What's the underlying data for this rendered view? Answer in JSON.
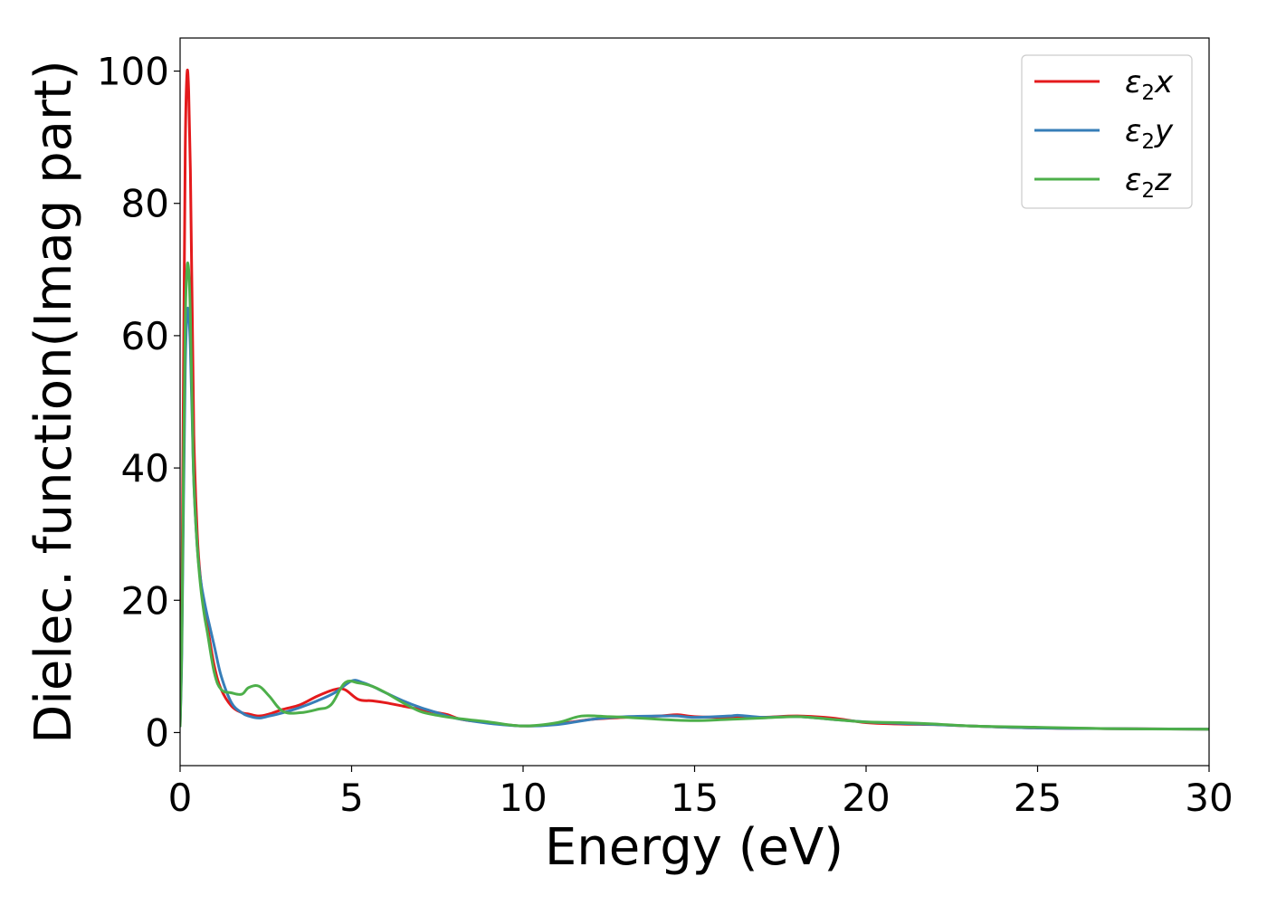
{
  "chart_data": {
    "type": "line",
    "title": "",
    "xlabel": "Energy (eV)",
    "ylabel": "Dielec. function(Imag part)",
    "xlim": [
      0,
      30
    ],
    "ylim": [
      -5,
      105
    ],
    "xticks": [
      0,
      5,
      10,
      15,
      20,
      25,
      30
    ],
    "yticks": [
      0,
      20,
      40,
      60,
      80,
      100
    ],
    "grid": false,
    "legend_position": "top-right",
    "series": [
      {
        "name": "ε2x",
        "legend": {
          "base": "ε",
          "sub": "2",
          "suffix": "x"
        },
        "color": "#e41a1c",
        "x": [
          0.0,
          0.05,
          0.1,
          0.15,
          0.2,
          0.25,
          0.3,
          0.35,
          0.4,
          0.5,
          0.6,
          0.7,
          0.8,
          1.0,
          1.2,
          1.5,
          1.8,
          2.0,
          2.3,
          2.6,
          3.0,
          3.5,
          4.0,
          4.5,
          4.8,
          5.2,
          5.6,
          6.0,
          6.5,
          7.0,
          7.5,
          7.8,
          8.2,
          9.0,
          10.0,
          11.0,
          12.0,
          13.0,
          14.0,
          14.5,
          15.0,
          16.0,
          17.0,
          18.0,
          19.0,
          20.0,
          21.0,
          22.0,
          23.0,
          25.0,
          27.0,
          30.0
        ],
        "y": [
          1.0,
          18.0,
          55.0,
          88.0,
          99.5,
          97.0,
          85.0,
          65.0,
          45.0,
          30.0,
          23.0,
          19.0,
          16.0,
          10.0,
          6.5,
          4.0,
          3.0,
          2.8,
          2.5,
          2.8,
          3.5,
          4.2,
          5.5,
          6.5,
          6.5,
          5.0,
          4.8,
          4.5,
          4.0,
          3.5,
          3.0,
          2.7,
          2.0,
          1.5,
          1.0,
          1.3,
          2.0,
          2.3,
          2.5,
          2.7,
          2.4,
          2.3,
          2.3,
          2.5,
          2.2,
          1.5,
          1.3,
          1.2,
          1.0,
          0.7,
          0.6,
          0.5
        ]
      },
      {
        "name": "ε2y",
        "legend": {
          "base": "ε",
          "sub": "2",
          "suffix": "y"
        },
        "color": "#377eb8",
        "x": [
          0.0,
          0.05,
          0.1,
          0.15,
          0.2,
          0.25,
          0.3,
          0.35,
          0.4,
          0.5,
          0.6,
          0.7,
          0.8,
          1.0,
          1.2,
          1.5,
          1.8,
          2.0,
          2.3,
          2.6,
          3.0,
          3.5,
          4.0,
          4.5,
          5.0,
          5.3,
          5.6,
          6.0,
          6.5,
          7.0,
          7.5,
          8.0,
          9.0,
          10.0,
          11.0,
          12.0,
          13.0,
          14.0,
          14.5,
          15.0,
          16.0,
          16.3,
          17.0,
          18.0,
          19.0,
          20.0,
          21.0,
          22.0,
          23.0,
          25.0,
          27.0,
          30.0
        ],
        "y": [
          1.0,
          12.0,
          35.0,
          55.0,
          63.0,
          63.5,
          58.0,
          48.0,
          38.0,
          28.0,
          23.0,
          20.0,
          17.5,
          13.0,
          8.5,
          4.5,
          3.0,
          2.5,
          2.2,
          2.5,
          3.0,
          3.8,
          4.8,
          6.0,
          7.8,
          7.6,
          7.0,
          6.0,
          4.8,
          3.8,
          3.0,
          2.2,
          1.4,
          1.0,
          1.2,
          2.0,
          2.4,
          2.5,
          2.5,
          2.3,
          2.5,
          2.6,
          2.3,
          2.4,
          2.0,
          1.6,
          1.4,
          1.2,
          1.0,
          0.7,
          0.6,
          0.5
        ]
      },
      {
        "name": "ε2z",
        "legend": {
          "base": "ε",
          "sub": "2",
          "suffix": "z"
        },
        "color": "#4daf4a",
        "x": [
          0.0,
          0.05,
          0.1,
          0.15,
          0.2,
          0.25,
          0.3,
          0.35,
          0.4,
          0.5,
          0.6,
          0.7,
          0.8,
          1.0,
          1.2,
          1.5,
          1.8,
          2.0,
          2.3,
          2.6,
          3.0,
          3.5,
          4.0,
          4.4,
          4.8,
          5.2,
          5.6,
          6.0,
          6.5,
          7.0,
          7.5,
          8.0,
          9.0,
          10.0,
          11.0,
          11.7,
          12.5,
          13.0,
          14.0,
          15.0,
          16.0,
          17.0,
          18.0,
          19.0,
          20.0,
          21.0,
          22.0,
          23.0,
          25.0,
          27.0,
          30.0
        ],
        "y": [
          1.0,
          14.0,
          40.0,
          62.0,
          70.0,
          70.0,
          63.0,
          50.0,
          38.0,
          28.0,
          22.0,
          18.0,
          15.0,
          9.0,
          6.5,
          6.0,
          5.8,
          6.8,
          7.0,
          5.5,
          3.2,
          3.0,
          3.5,
          4.2,
          7.5,
          7.5,
          7.0,
          6.0,
          4.5,
          3.2,
          2.6,
          2.2,
          1.6,
          1.0,
          1.5,
          2.5,
          2.4,
          2.3,
          2.0,
          1.8,
          2.0,
          2.2,
          2.4,
          2.0,
          1.6,
          1.5,
          1.3,
          1.0,
          0.8,
          0.6,
          0.5
        ]
      }
    ]
  }
}
